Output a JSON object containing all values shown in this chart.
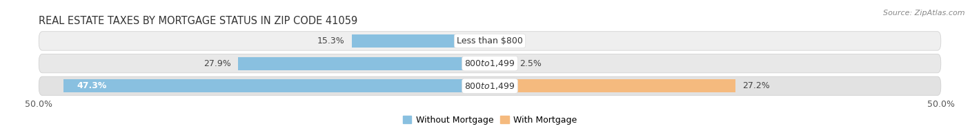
{
  "title": "Real Estate Taxes by Mortgage Status in Zip Code 41059",
  "source": "Source: ZipAtlas.com",
  "rows": [
    {
      "label": "Less than $800",
      "without_mortgage": 15.3,
      "with_mortgage": 0.0
    },
    {
      "label": "$800 to $1,499",
      "without_mortgage": 27.9,
      "with_mortgage": 2.5
    },
    {
      "label": "$800 to $1,499",
      "without_mortgage": 47.3,
      "with_mortgage": 27.2
    }
  ],
  "x_min": -50.0,
  "x_max": 50.0,
  "color_without": "#89C0E0",
  "color_with": "#F5BA7E",
  "row_bg_colors": [
    "#EFEFEF",
    "#E8E8E8",
    "#E2E2E2"
  ],
  "bar_height": 0.58,
  "legend_labels": [
    "Without Mortgage",
    "With Mortgage"
  ],
  "title_fontsize": 10.5,
  "label_fontsize": 9,
  "tick_fontsize": 9,
  "source_fontsize": 8
}
